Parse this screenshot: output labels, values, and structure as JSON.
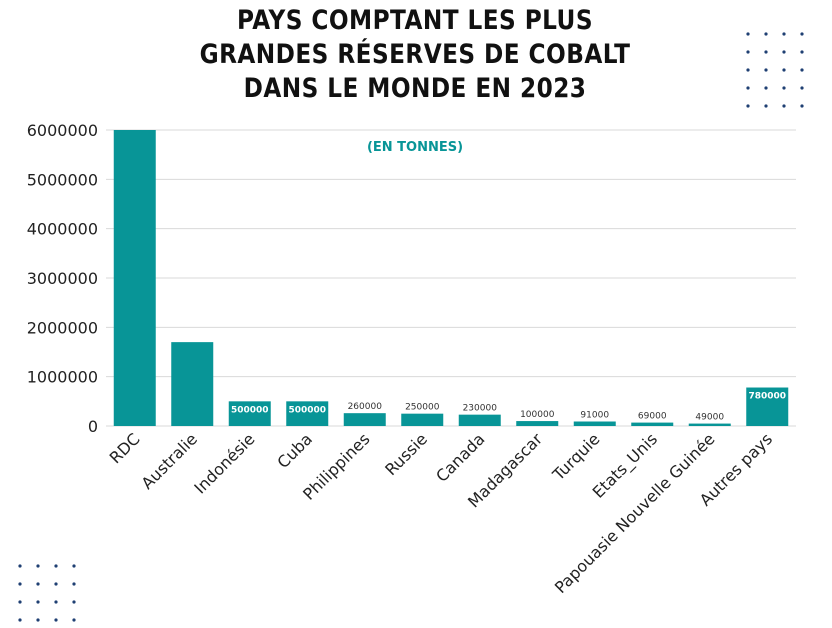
{
  "chart_data": {
    "type": "bar",
    "title": "PAYS COMPTANT LES PLUS GRANDES RÉSERVES DE COBALT DANS LE MONDE EN 2023",
    "subtitle": "(EN TONNES)",
    "xlabel": "",
    "ylabel": "",
    "ylim": [
      0,
      6000000
    ],
    "yticks": [
      "0",
      "1000000",
      "2000000",
      "3000000",
      "4000000",
      "5000000",
      "6000000"
    ],
    "grid": true,
    "legend": "none",
    "categories": [
      "RDC",
      "Australie",
      "Indonésie",
      "Cuba",
      "Philippines",
      "Russie",
      "Canada",
      "Madagascar",
      "Turquie",
      "Etats_Unis",
      "Papouasie Nouvelle Guinée",
      "Autres pays"
    ],
    "values": [
      6000000,
      1700000,
      500000,
      500000,
      260000,
      250000,
      230000,
      100000,
      91000,
      69000,
      49000,
      780000
    ],
    "data_labels": [
      "",
      "",
      "500000",
      "500000",
      "260000",
      "250000",
      "230000",
      "100000",
      "91000",
      "69000",
      "49000",
      "780000"
    ],
    "colors": {
      "bar": "#089597",
      "label_inside": "#ffffff",
      "label_outside": "#333333",
      "grid": "#d9d9d9",
      "subtitle": "#089597",
      "dots": "#1f3f73"
    }
  }
}
